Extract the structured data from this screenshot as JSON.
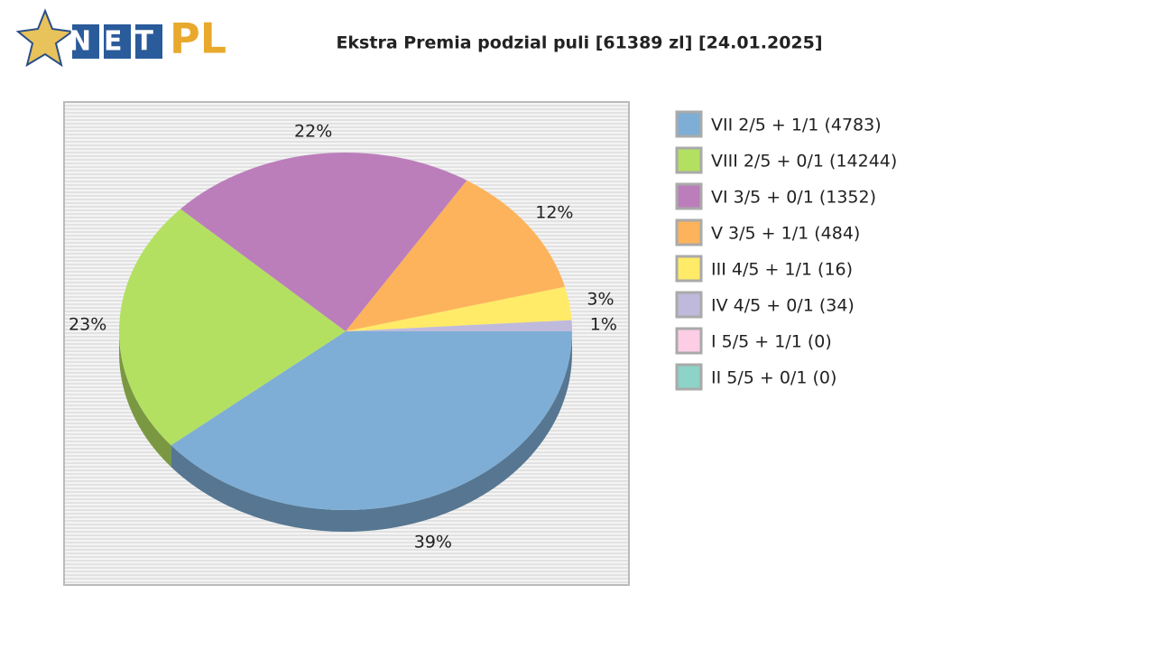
{
  "logo": {
    "left": "NET",
    "right": "PL"
  },
  "chart_data": {
    "type": "pie",
    "title": "Ekstra Premia podzial puli [61389 zl] [24.01.2025]",
    "categories": [
      "VII 2/5 + 1/1 (4783)",
      "VIII 2/5 + 0/1 (14244)",
      "VI 3/5 + 0/1 (1352)",
      "V 3/5 + 1/1 (484)",
      "III 4/5 + 1/1 (16)",
      "IV 4/5 + 0/1 (34)",
      "I 5/5 + 1/1 (0)",
      "II 5/5 + 0/1 (0)"
    ],
    "values": [
      39,
      23,
      22,
      12,
      3,
      1,
      0,
      0
    ],
    "value_labels": [
      "39%",
      "23%",
      "22%",
      "12%",
      "3%",
      "1%",
      null,
      null
    ],
    "colors": [
      "#7eaed5",
      "#b3e061",
      "#bc7ebb",
      "#fdb35b",
      "#ffeb67",
      "#bfbadb",
      "#fccde5",
      "#8dd3c7"
    ],
    "legend": "right"
  }
}
